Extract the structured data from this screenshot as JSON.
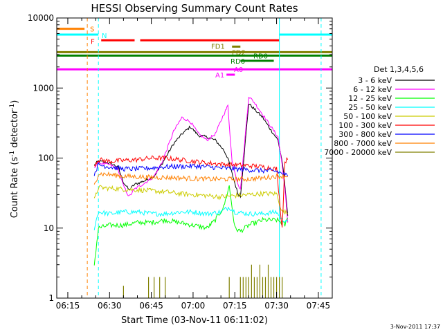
{
  "chart_data": {
    "type": "line",
    "title": "HESSI Observing Summary Count Rates",
    "xlabel": "Start Time (03-Nov-11 06:11:02)",
    "ylabel": "Count Rate (s⁻¹ detector⁻¹)",
    "ylabel_parts": [
      "Count Rate (s",
      "-1",
      " detector",
      "-1",
      ")"
    ],
    "yscale": "log",
    "ylim": [
      1,
      10000
    ],
    "xlim_min": [
      371.03,
      470
    ],
    "y_ticks": [
      1,
      10,
      100,
      1000,
      10000
    ],
    "y_tick_labels": [
      "1",
      "10",
      "100",
      "1000",
      "10000"
    ],
    "x_ticks_min": [
      375,
      390,
      405,
      420,
      435,
      450,
      465
    ],
    "x_tick_labels": [
      "06:15",
      "06:30",
      "06:45",
      "07:00",
      "07:15",
      "07:30",
      "07:45"
    ],
    "footer": "3-Nov-2011 17:37",
    "legend": {
      "placement": "right",
      "title": "Det 1,3,4,5,6",
      "entries": [
        {
          "label": "3 - 6 keV",
          "color": "#000000"
        },
        {
          "label": "6 - 12 keV",
          "color": "#ff00ff"
        },
        {
          "label": "12 - 25 keV",
          "color": "#00ff00"
        },
        {
          "label": "25 - 50 keV",
          "color": "#00ffff"
        },
        {
          "label": "50 - 100 keV",
          "color": "#cccc00"
        },
        {
          "label": "100 - 300 keV",
          "color": "#ff0000"
        },
        {
          "label": "300 - 800 keV",
          "color": "#0000ff"
        },
        {
          "label": "800 - 7000 keV",
          "color": "#ff8000"
        },
        {
          "label": "7000 - 20000 keV",
          "color": "#808000"
        }
      ]
    },
    "flag_bars": [
      {
        "label": "S",
        "color": "#ff8000",
        "y": 7000,
        "segments": [
          [
            371,
            381
          ]
        ]
      },
      {
        "label": "N",
        "color": "#00ffff",
        "y": 5800,
        "segments": [
          [
            371,
            386
          ],
          [
            451,
            470
          ]
        ]
      },
      {
        "label": "F",
        "color": "#ff0000",
        "y": 4800,
        "segments": [
          [
            387,
            399
          ],
          [
            401,
            451
          ]
        ]
      },
      {
        "label": "FD1",
        "color": "#808000",
        "y": 3900,
        "segments": [
          [
            434,
            437
          ]
        ]
      },
      {
        "label": "FD2",
        "color": "#808000",
        "y": 3250,
        "segments": [
          [
            371,
            470
          ]
        ]
      },
      {
        "label": "RD0",
        "color": "#008000",
        "y": 2900,
        "segments": [
          [
            371,
            470
          ]
        ]
      },
      {
        "label": "RD6",
        "color": "#008000",
        "y": 2450,
        "segments": [
          [
            437,
            449
          ]
        ]
      },
      {
        "label": "A0",
        "color": "#ff00ff",
        "y": 1850,
        "segments": [
          [
            371,
            470
          ]
        ]
      },
      {
        "label": "A1",
        "color": "#ff00ff",
        "y": 1550,
        "segments": [
          [
            432,
            435
          ]
        ]
      }
    ],
    "vertical_markers": [
      {
        "x": 382,
        "color": "#ff8000"
      },
      {
        "x": 386,
        "color": "#00ffff"
      },
      {
        "x": 451,
        "color": "#00ffff",
        "style": "solid"
      },
      {
        "x": 466,
        "color": "#00ffff"
      }
    ],
    "series": [
      {
        "name": "3 - 6 keV",
        "color": "#000000",
        "x": [
          384.5,
          386,
          390,
          393,
          395,
          397,
          399,
          403,
          406,
          409,
          413,
          416,
          419,
          422,
          425,
          428,
          431,
          432.5,
          434,
          436,
          437,
          440,
          442,
          445,
          448,
          450.5,
          452,
          453,
          454
        ],
        "y": [
          80,
          90,
          85,
          75,
          45,
          35,
          42,
          48,
          55,
          85,
          160,
          220,
          280,
          210,
          200,
          180,
          130,
          100,
          60,
          32,
          28,
          600,
          500,
          380,
          250,
          180,
          90,
          40,
          15
        ]
      },
      {
        "name": "6 - 12 keV",
        "color": "#ff00ff",
        "x": [
          384.5,
          386,
          390,
          393,
          395,
          397,
          399,
          403,
          406,
          409,
          413,
          416,
          419,
          422,
          425,
          428,
          431,
          432.5,
          434,
          436,
          437,
          440,
          442,
          445,
          448,
          450.5,
          452,
          453,
          454
        ],
        "y": [
          75,
          85,
          80,
          70,
          40,
          28,
          36,
          45,
          55,
          90,
          240,
          380,
          330,
          220,
          180,
          220,
          420,
          560,
          90,
          45,
          35,
          760,
          620,
          420,
          280,
          200,
          80,
          35,
          12
        ]
      },
      {
        "name": "12 - 25 keV",
        "color": "#00ff00",
        "x": [
          384.5,
          386,
          390,
          395,
          400,
          405,
          410,
          415,
          420,
          425,
          428,
          431,
          433,
          435,
          437,
          440,
          445,
          450,
          452,
          453,
          454
        ],
        "y": [
          3,
          10,
          11,
          11,
          12,
          12,
          13,
          12,
          11,
          10,
          13,
          20,
          40,
          10,
          9,
          11,
          13,
          13,
          12,
          11,
          14
        ]
      },
      {
        "name": "25 - 50 keV",
        "color": "#00ffff",
        "x": [
          384.5,
          386,
          390,
          395,
          400,
          405,
          410,
          415,
          420,
          425,
          430,
          433,
          435,
          440,
          445,
          450,
          452,
          453,
          454
        ],
        "y": [
          10,
          17,
          16,
          17,
          17,
          16,
          16,
          17,
          17,
          16,
          17,
          20,
          17,
          16,
          16,
          17,
          13,
          13,
          13
        ]
      },
      {
        "name": "50 - 100 keV",
        "color": "#cccc00",
        "x": [
          384.5,
          386,
          390,
          395,
          400,
          405,
          410,
          415,
          420,
          425,
          430,
          435,
          440,
          445,
          450,
          452,
          453,
          454
        ],
        "y": [
          25,
          38,
          37,
          36,
          35,
          34,
          33,
          31,
          30,
          29,
          28,
          29,
          30,
          31,
          31,
          17,
          17,
          16
        ]
      },
      {
        "name": "100 - 300 keV",
        "color": "#ff0000",
        "x": [
          384.5,
          386,
          390,
          395,
          400,
          405,
          410,
          415,
          420,
          425,
          430,
          435,
          440,
          445,
          450,
          452,
          453,
          454
        ],
        "y": [
          80,
          95,
          90,
          92,
          95,
          100,
          100,
          95,
          90,
          85,
          82,
          80,
          78,
          75,
          70,
          10,
          90,
          95
        ]
      },
      {
        "name": "300 - 800 keV",
        "color": "#0000ff",
        "x": [
          384.5,
          386,
          390,
          395,
          400,
          405,
          410,
          415,
          420,
          425,
          430,
          435,
          440,
          445,
          450,
          452,
          453,
          454
        ],
        "y": [
          60,
          80,
          75,
          70,
          70,
          72,
          75,
          76,
          77,
          75,
          72,
          70,
          68,
          66,
          65,
          60,
          58,
          55
        ]
      },
      {
        "name": "800 - 7000 keV",
        "color": "#ff8000",
        "x": [
          384.5,
          386,
          390,
          395,
          400,
          405,
          410,
          415,
          420,
          425,
          430,
          435,
          440,
          445,
          450,
          452,
          453,
          454
        ],
        "y": [
          40,
          60,
          58,
          55,
          54,
          53,
          53,
          52,
          51,
          50,
          50,
          50,
          50,
          52,
          55,
          55,
          55,
          55
        ]
      },
      {
        "name": "7000 - 20000 keV",
        "color": "#808000",
        "x": [
          386,
          391,
          395,
          399,
          404,
          406,
          407,
          408,
          409,
          410,
          413,
          433,
          435,
          437,
          438,
          439,
          440,
          441,
          442,
          443,
          444,
          445,
          446,
          447,
          448,
          449,
          450,
          451,
          452
        ],
        "y": [
          1,
          1,
          1.5,
          1,
          2,
          2,
          1,
          2,
          1,
          2,
          1,
          2,
          1,
          2,
          2,
          2,
          2,
          3,
          2,
          2,
          3,
          2,
          2,
          3,
          2,
          2,
          2,
          2,
          2
        ]
      }
    ]
  }
}
